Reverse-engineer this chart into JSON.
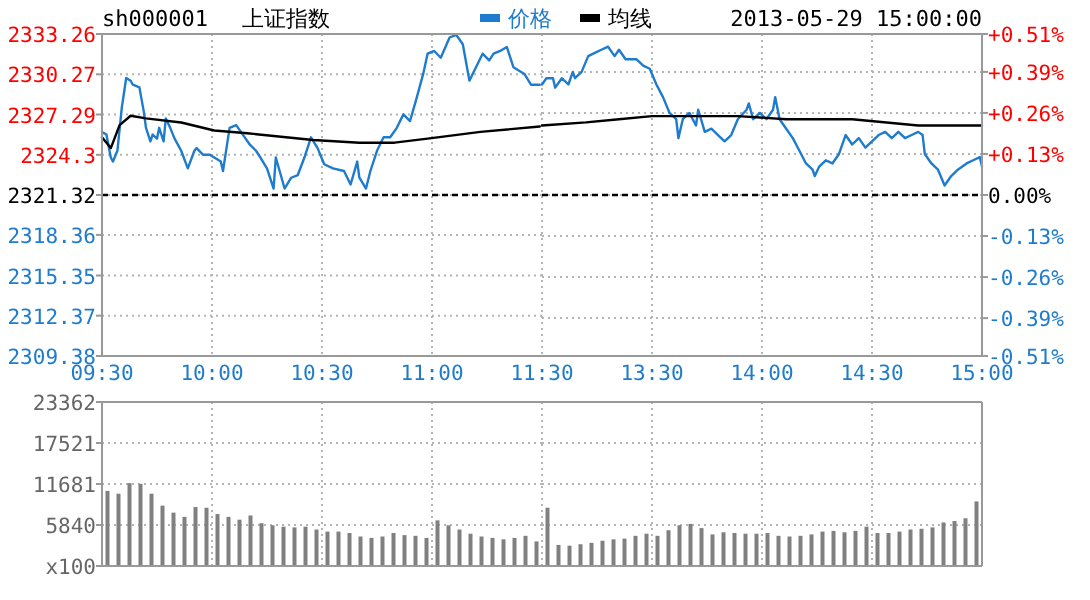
{
  "chart_data": [
    {
      "type": "line",
      "title": "上证指数",
      "subtitle": "sh000001",
      "legend": "top",
      "grid": true,
      "xlim": [
        9.5,
        11.5
      ],
      "xticks": [
        {
          "value": 9.5,
          "label": "09:30"
        },
        {
          "value": 10,
          "label": "10:00"
        },
        {
          "value": 10.5,
          "label": "10:30"
        },
        {
          "value": 11,
          "label": "11:00"
        },
        {
          "value": 11.5,
          "label": "11:30"
        }
      ],
      "ylim": [
        2309.38,
        2333.26
      ],
      "yticks": [
        2309.38,
        2312.37,
        2315.35,
        2318.36,
        2321.32,
        2324.3,
        2327.29,
        2330.27,
        2333.26
      ],
      "ref_lines": [
        {
          "axis": "y",
          "value": 2321.32,
          "color": "#000000",
          "line_style": "dashed"
        }
      ],
      "series": [
        {
          "name": "价格",
          "color": "#1f7ccd",
          "x": [
            9.5,
            9.52,
            9.54,
            9.55,
            9.57,
            9.59,
            9.61,
            9.63,
            9.64,
            9.67,
            9.69,
            9.7,
            9.72,
            9.73,
            9.75,
            9.76,
            9.78,
            9.79,
            9.81,
            9.83,
            9.86,
            9.89,
            9.92,
            9.93,
            9.96,
            9.99,
            10.04,
            10.05,
            10.08,
            10.11,
            10.14,
            10.17,
            10.2,
            10.22,
            10.25,
            10.28,
            10.29,
            10.33,
            10.36,
            10.39,
            10.42,
            10.45,
            10.48,
            10.51,
            10.55,
            10.6,
            10.63,
            10.66,
            10.67,
            10.7,
            10.72,
            10.75,
            10.78,
            10.81,
            10.84,
            10.87,
            10.9,
            10.93,
            10.96,
            10.98,
            11.01,
            11.04,
            11.08,
            11.11,
            11.14,
            11.17,
            11.2,
            11.23,
            11.26,
            11.28,
            11.31,
            11.34,
            11.37,
            11.42,
            11.45,
            11.49
          ],
          "values": [
            2326.0,
            2325.8,
            2324.1,
            2323.8,
            2324.6,
            2327.8,
            2330.0,
            2329.8,
            2329.5,
            2329.3,
            2327.5,
            2326.3,
            2325.3,
            2325.8,
            2325.5,
            2326.3,
            2325.3,
            2327.0,
            2326.3,
            2325.5,
            2324.6,
            2323.3,
            2324.6,
            2324.8,
            2324.3,
            2324.3,
            2323.8,
            2323.1,
            2326.3,
            2326.5,
            2325.8,
            2325.1,
            2324.6,
            2324.1,
            2323.3,
            2321.8,
            2324.1,
            2321.8,
            2322.6,
            2322.8,
            2324.1,
            2325.6,
            2324.8,
            2323.6,
            2323.3,
            2323.1,
            2322.1,
            2323.8,
            2322.6,
            2321.8,
            2323.1,
            2324.6,
            2325.6,
            2325.6,
            2326.3,
            2327.3,
            2326.8,
            2328.5,
            2330.3,
            2331.8,
            2332.0,
            2331.5,
            2333.0,
            2333.2,
            2332.5,
            2329.8,
            2330.8,
            2331.8,
            2331.3,
            2331.8,
            2332.0,
            2332.3,
            2330.8,
            2330.3,
            2329.5,
            2329.5
          ]
        },
        {
          "name": "均线",
          "color": "#000000",
          "x": [
            9.5,
            9.54,
            9.58,
            9.63,
            9.7,
            9.86,
            10.01,
            10.16,
            10.46,
            10.67,
            10.83,
            10.98,
            11.22,
            11.49
          ],
          "values": [
            2325.6,
            2324.8,
            2326.5,
            2327.2,
            2327.0,
            2326.7,
            2326.1,
            2325.9,
            2325.4,
            2325.2,
            2325.2,
            2325.5,
            2326.0,
            2326.4
          ]
        }
      ]
    },
    {
      "type": "line",
      "annotations": [
        "2013-05-29 15:00:00"
      ],
      "grid": true,
      "xlim": [
        13,
        15
      ],
      "xticks": [
        {
          "value": 13.5,
          "label": "13:30"
        },
        {
          "value": 14,
          "label": "14:00"
        },
        {
          "value": 14.5,
          "label": "14:30"
        },
        {
          "value": 15,
          "label": "15:00"
        }
      ],
      "y2lim": [
        -0.51,
        0.51
      ],
      "y2ticks": [
        {
          "value": -0.51,
          "label": "-0.51%"
        },
        {
          "value": -0.39,
          "label": "-0.39%"
        },
        {
          "value": -0.26,
          "label": "-0.26%"
        },
        {
          "value": -0.13,
          "label": "-0.13%"
        },
        {
          "value": 0,
          "label": "0.00%"
        },
        {
          "value": 0.13,
          "label": "+0.13%"
        },
        {
          "value": 0.26,
          "label": "+0.26%"
        },
        {
          "value": 0.39,
          "label": "+0.39%"
        },
        {
          "value": 0.51,
          "label": "+0.51%"
        }
      ],
      "ref_lines": [
        {
          "axis": "y2",
          "value": 0,
          "color": "#000000",
          "line_style": "dashed"
        }
      ],
      "series": [
        {
          "color": "#1f7ccd",
          "axis": "y2",
          "x": [
            13.0,
            13.02,
            13.05,
            13.06,
            13.09,
            13.12,
            13.14,
            13.15,
            13.18,
            13.21,
            13.24,
            13.27,
            13.3,
            13.33,
            13.35,
            13.38,
            13.43,
            13.46,
            13.49,
            13.52,
            13.55,
            13.58,
            13.61,
            13.62,
            13.64,
            13.67,
            13.7,
            13.71,
            13.74,
            13.77,
            13.8,
            13.83,
            13.86,
            13.89,
            13.93,
            13.94,
            13.96,
            13.99,
            14.02,
            14.05,
            14.06,
            14.08,
            14.11,
            14.14,
            14.17,
            14.2,
            14.23,
            14.24,
            14.26,
            14.29,
            14.32,
            14.35,
            14.38,
            14.41,
            14.44,
            14.47,
            14.5,
            14.53,
            14.56,
            14.59,
            14.62,
            14.65,
            14.68,
            14.71,
            14.73,
            14.74,
            14.77,
            14.8,
            14.83,
            14.86,
            14.89,
            14.93,
            14.96,
            14.99,
            15
          ],
          "values": [
            0.35,
            0.37,
            0.37,
            0.34,
            0.37,
            0.35,
            0.39,
            0.37,
            0.39,
            0.44,
            0.45,
            0.46,
            0.47,
            0.44,
            0.46,
            0.43,
            0.43,
            0.41,
            0.4,
            0.35,
            0.31,
            0.26,
            0.24,
            0.18,
            0.24,
            0.26,
            0.22,
            0.27,
            0.2,
            0.21,
            0.19,
            0.17,
            0.19,
            0.24,
            0.27,
            0.29,
            0.24,
            0.26,
            0.24,
            0.27,
            0.31,
            0.24,
            0.21,
            0.18,
            0.14,
            0.1,
            0.08,
            0.06,
            0.09,
            0.11,
            0.1,
            0.13,
            0.19,
            0.16,
            0.18,
            0.15,
            0.17,
            0.19,
            0.2,
            0.18,
            0.2,
            0.18,
            0.19,
            0.2,
            0.19,
            0.13,
            0.1,
            0.08,
            0.03,
            0.06,
            0.08,
            0.1,
            0.11,
            0.12,
            0.09
          ]
        },
        {
          "color": "#000000",
          "axis": "y2",
          "x": [
            13.0,
            13.2,
            13.35,
            13.5,
            13.89,
            14.11,
            14.41,
            14.71,
            15
          ],
          "values": [
            0.22,
            0.23,
            0.24,
            0.25,
            0.25,
            0.24,
            0.24,
            0.22,
            0.22
          ]
        }
      ]
    },
    {
      "type": "bar",
      "grid": true,
      "tick_labels": "y",
      "color": "#808080",
      "xlim": [
        9.5,
        11.5
      ],
      "xticks": [
        9.5,
        10,
        10.5,
        11,
        11.5
      ],
      "ylim": [
        0,
        23362
      ],
      "yticks": [
        {
          "value": 0,
          "label": "x100"
        },
        5840,
        11681,
        17521,
        23362
      ],
      "x": [
        9.525,
        9.575,
        9.625,
        9.675,
        9.725,
        9.775,
        9.825,
        9.875,
        9.925,
        9.975,
        10.025,
        10.075,
        10.125,
        10.175,
        10.225,
        10.275,
        10.325,
        10.375,
        10.425,
        10.475,
        10.525,
        10.575,
        10.625,
        10.675,
        10.725,
        10.775,
        10.825,
        10.875,
        10.925,
        10.975,
        11.025,
        11.075,
        11.125,
        11.175,
        11.225,
        11.275,
        11.325,
        11.375,
        11.425,
        11.475
      ],
      "values": [
        10700,
        10300,
        11800,
        11700,
        10300,
        8600,
        7600,
        7000,
        8400,
        8300,
        7400,
        7000,
        6600,
        7200,
        6100,
        5800,
        5600,
        5500,
        5600,
        5200,
        4900,
        4900,
        4700,
        4200,
        4000,
        4200,
        4700,
        4400,
        4300,
        4000,
        6500,
        5800,
        5200,
        4600,
        4200,
        4000,
        3800,
        4000,
        4300,
        3500
      ]
    },
    {
      "type": "bar",
      "grid": true,
      "tick_labels": false,
      "color": "#808080",
      "xlim": [
        13,
        15
      ],
      "xticks": [
        13.5,
        14,
        14.5,
        15
      ],
      "ylim": [
        0,
        23362
      ],
      "yticks": [
        0,
        5840,
        11681,
        17521,
        23362
      ],
      "x": [
        13.025,
        13.075,
        13.125,
        13.175,
        13.225,
        13.275,
        13.325,
        13.375,
        13.425,
        13.475,
        13.525,
        13.575,
        13.625,
        13.675,
        13.725,
        13.775,
        13.825,
        13.875,
        13.925,
        13.975,
        14.025,
        14.075,
        14.125,
        14.175,
        14.225,
        14.275,
        14.325,
        14.375,
        14.425,
        14.475,
        14.525,
        14.575,
        14.625,
        14.675,
        14.725,
        14.775,
        14.825,
        14.875,
        14.925,
        14.975
      ],
      "values": [
        8300,
        3000,
        2900,
        3100,
        3300,
        3600,
        3800,
        3900,
        4300,
        4600,
        4300,
        5100,
        5800,
        6000,
        5400,
        4500,
        4800,
        4700,
        4600,
        4600,
        4700,
        4300,
        4200,
        4300,
        4500,
        4900,
        5000,
        4800,
        5000,
        5600,
        4700,
        4700,
        4900,
        5200,
        5300,
        5500,
        6200,
        6400,
        6800,
        9200
      ]
    }
  ]
}
